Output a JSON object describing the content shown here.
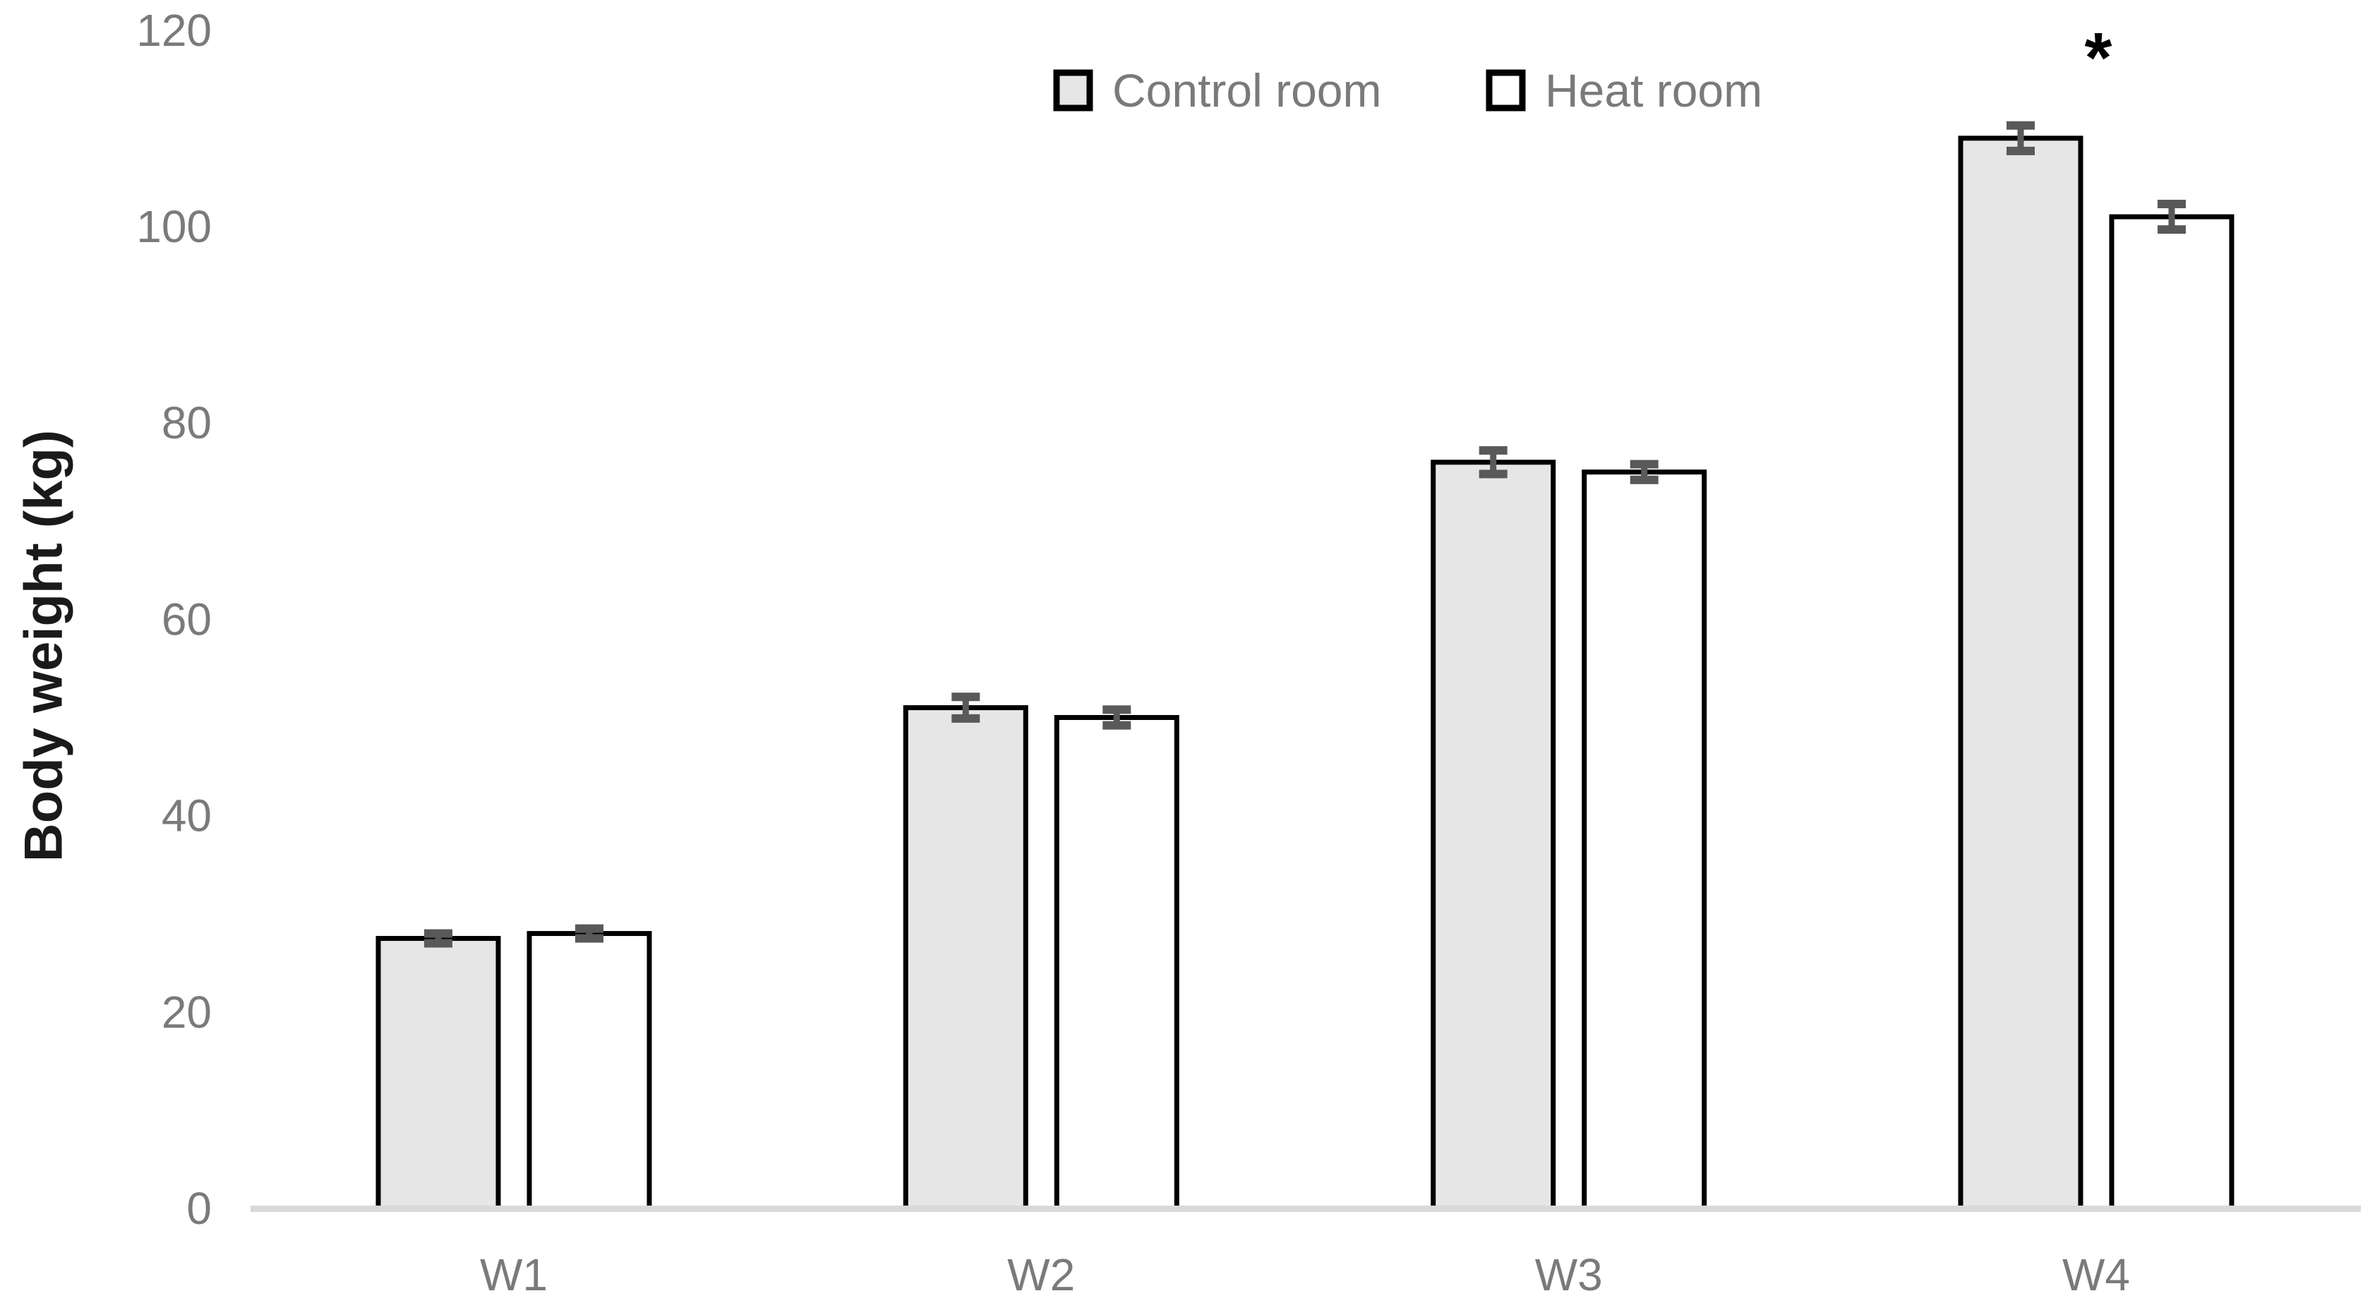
{
  "chart_data": {
    "type": "bar",
    "title": "",
    "xlabel": "",
    "ylabel": "Body weight (kg)",
    "categories": [
      "W1",
      "W2",
      "W3",
      "W4"
    ],
    "series": [
      {
        "name": "Control room",
        "fill": "#e7e6e6",
        "values": [
          27.5,
          51,
          76,
          109
        ],
        "errors": [
          0.5,
          1.1,
          1.2,
          1.3
        ]
      },
      {
        "name": "Heat room",
        "fill": "#ffffff",
        "values": [
          28,
          50,
          75,
          101
        ],
        "errors": [
          0.5,
          0.8,
          0.8,
          1.3
        ]
      }
    ],
    "ylim": [
      0,
      120
    ],
    "yticks": [
      0,
      20,
      40,
      60,
      80,
      100,
      120
    ],
    "grid": false,
    "legend_position": "top-center",
    "annotations": [
      {
        "text": "*",
        "category": "W4"
      }
    ],
    "colors": {
      "bar_border": "#000000",
      "error_bar": "#595959",
      "axis_line": "#d9d9d9",
      "tick_text": "#7a7a7a",
      "axis_title_text": "#1a1a1a",
      "annotation": "#000000"
    }
  }
}
